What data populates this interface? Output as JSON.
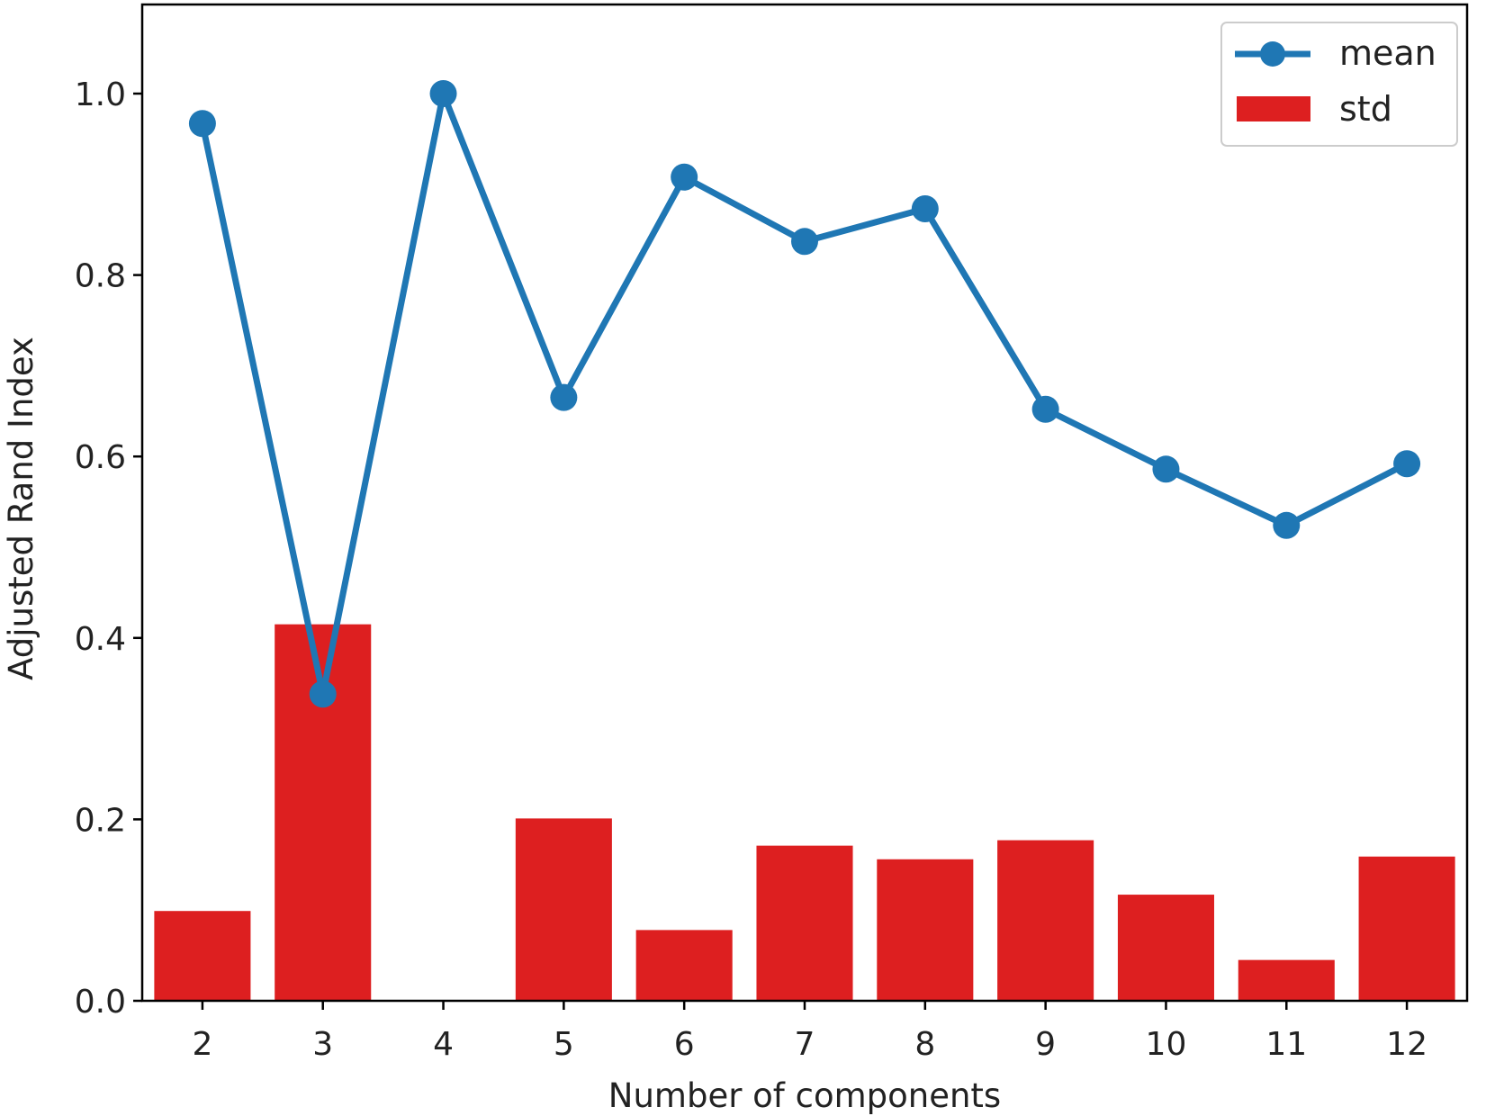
{
  "chart_data": {
    "type": "bar",
    "title": "",
    "xlabel": "Number of components",
    "ylabel": "Adjusted Rand Index",
    "categories": [
      "2",
      "3",
      "4",
      "5",
      "6",
      "7",
      "8",
      "9",
      "10",
      "11",
      "12"
    ],
    "ylim": [
      0,
      1.1
    ],
    "yticks": [
      "0.0",
      "0.2",
      "0.4",
      "0.6",
      "0.8",
      "1.0"
    ],
    "grid": false,
    "legend_position": "top-right",
    "series": [
      {
        "name": "mean",
        "type": "line",
        "color": "#1f77b4",
        "marker": "circle",
        "values": [
          0.967,
          0.338,
          1.0,
          0.665,
          0.908,
          0.837,
          0.873,
          0.652,
          0.586,
          0.524,
          0.592
        ]
      },
      {
        "name": "std",
        "type": "bar",
        "color": "#dd1f20",
        "values": [
          0.099,
          0.415,
          0.0,
          0.201,
          0.078,
          0.171,
          0.156,
          0.177,
          0.117,
          0.045,
          0.159
        ]
      }
    ]
  }
}
